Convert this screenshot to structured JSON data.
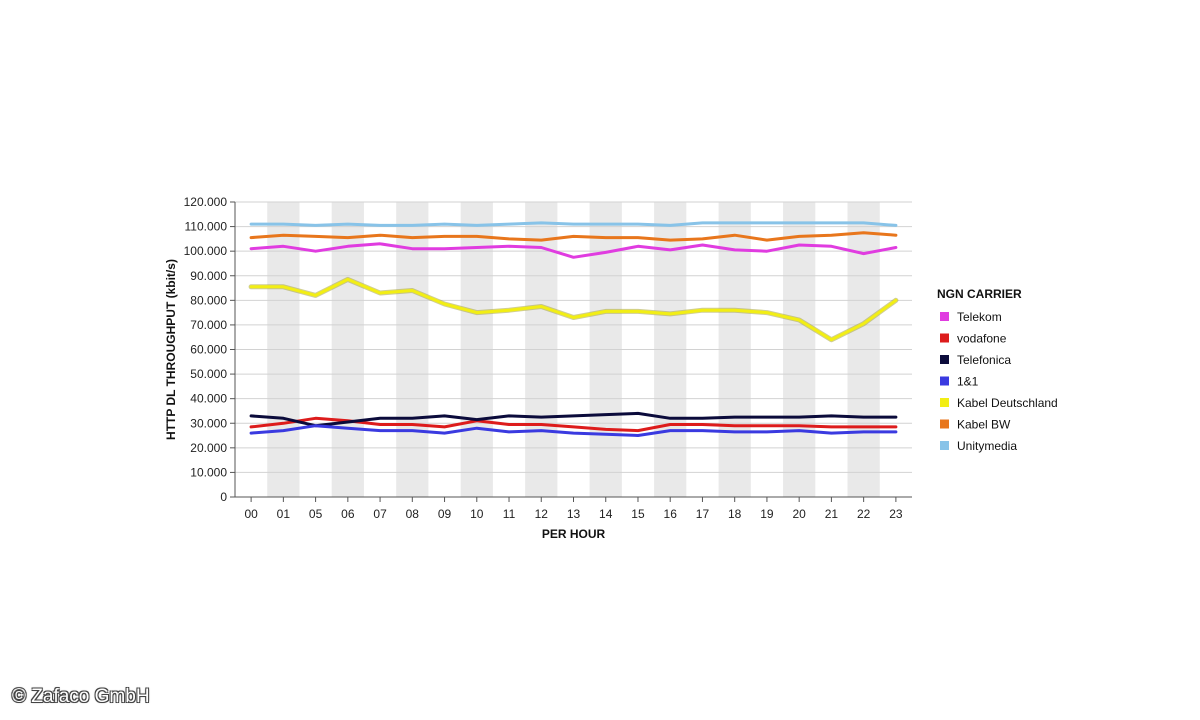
{
  "chart_data": {
    "type": "line",
    "title": "",
    "xlabel": "PER HOUR",
    "ylabel": "HTTP DL THROUGHPUT (kbit/s)",
    "ylim": [
      0,
      120000
    ],
    "yticks": [
      "0",
      "10.000",
      "20.000",
      "30.000",
      "40.000",
      "50.000",
      "60.000",
      "70.000",
      "80.000",
      "90.000",
      "100.000",
      "110.000",
      "120.000"
    ],
    "categories": [
      "00",
      "01",
      "05",
      "06",
      "07",
      "08",
      "09",
      "10",
      "11",
      "12",
      "13",
      "14",
      "15",
      "16",
      "17",
      "18",
      "19",
      "20",
      "21",
      "22",
      "23"
    ],
    "legend_title": "NGN CARRIER",
    "legend_position": "right",
    "series": [
      {
        "name": "Telekom",
        "color": "#e03ce0",
        "values": [
          101000,
          102000,
          100000,
          102000,
          103000,
          101000,
          101000,
          101500,
          102000,
          101500,
          97500,
          99500,
          102000,
          100500,
          102500,
          100500,
          100000,
          102500,
          102000,
          99000,
          101500
        ]
      },
      {
        "name": "vodafone",
        "color": "#dd1c1c",
        "values": [
          28500,
          30000,
          32000,
          31000,
          29500,
          29500,
          28500,
          31000,
          29500,
          29500,
          28500,
          27500,
          27000,
          29500,
          29500,
          29000,
          29000,
          29000,
          28500,
          28500,
          28500
        ]
      },
      {
        "name": "Telefonica",
        "color": "#0b0b3b",
        "values": [
          33000,
          32000,
          29000,
          30500,
          32000,
          32000,
          33000,
          31500,
          33000,
          32500,
          33000,
          33500,
          34000,
          32000,
          32000,
          32500,
          32500,
          32500,
          33000,
          32500,
          32500
        ]
      },
      {
        "name": "1&1",
        "color": "#3a3ae0",
        "values": [
          26000,
          27000,
          29000,
          28000,
          27000,
          27000,
          26000,
          28000,
          26500,
          27000,
          26000,
          25500,
          25000,
          27000,
          27000,
          26500,
          26500,
          27000,
          26000,
          26500,
          26500
        ]
      },
      {
        "name": "Kabel Deutschland",
        "color": "#f2ee14",
        "values": [
          85500,
          85500,
          82000,
          88500,
          83000,
          84000,
          78500,
          75000,
          76000,
          77500,
          73000,
          75500,
          75500,
          74500,
          76000,
          76000,
          75000,
          72000,
          64000,
          70500,
          80000
        ]
      },
      {
        "name": "Kabel BW",
        "color": "#e8761c",
        "values": [
          105500,
          106500,
          106000,
          105500,
          106500,
          105500,
          106000,
          106000,
          105000,
          104500,
          106000,
          105500,
          105500,
          104500,
          105000,
          106500,
          104500,
          106000,
          106500,
          107500,
          106500
        ]
      },
      {
        "name": "Unitymedia",
        "color": "#88c3e8",
        "values": [
          111000,
          111000,
          110500,
          111000,
          110500,
          110500,
          111000,
          110500,
          111000,
          111500,
          111000,
          111000,
          111000,
          110500,
          111500,
          111500,
          111500,
          111500,
          111500,
          111500,
          110500
        ]
      }
    ]
  },
  "copyright": "© Zafaco GmbH"
}
